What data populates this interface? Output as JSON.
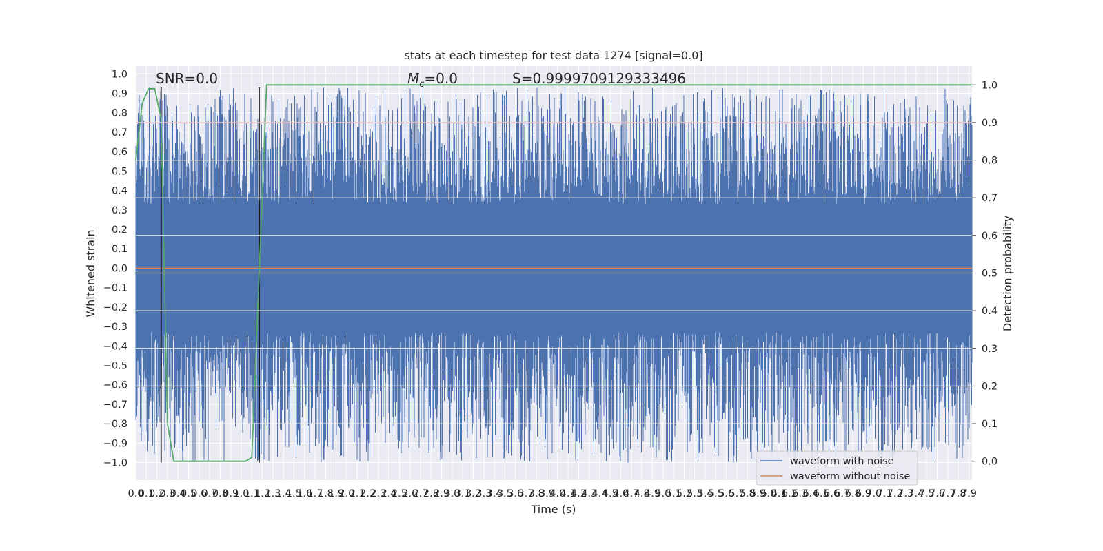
{
  "chart_data": {
    "type": "line",
    "title": "stats at each timestep for test data 1274 [signal=0.0]",
    "xlabel": "Time (s)",
    "ylabel": "Whitened strain",
    "y2label": "Detection probability",
    "xlim": [
      0.0,
      7.93
    ],
    "ylim": [
      -1.09,
      1.04
    ],
    "y2lim": [
      -0.05,
      1.05
    ],
    "grid": true,
    "legend_position": "lower-right",
    "x_ticks": [
      "0.0",
      "0.1",
      "0.2",
      "0.3",
      "0.4",
      "0.5",
      "0.6",
      "0.7",
      "0.8",
      "0.9",
      "1.0",
      "1.1",
      "1.2",
      "1.3",
      "1.4",
      "1.5",
      "1.6",
      "1.7",
      "1.8",
      "1.9",
      "2.0",
      "2.1",
      "2.2",
      "2.3",
      "2.4",
      "2.5",
      "2.6",
      "2.7",
      "2.8",
      "2.9",
      "3.0",
      "3.1",
      "3.2",
      "3.3",
      "3.4",
      "3.5",
      "3.6",
      "3.7",
      "3.8",
      "3.9",
      "4.0",
      "4.1",
      "4.2",
      "4.3",
      "4.4",
      "4.5",
      "4.6",
      "4.7",
      "4.8",
      "4.9",
      "5.0",
      "5.1",
      "5.2",
      "5.3",
      "5.4",
      "5.5",
      "5.6",
      "5.7",
      "5.8",
      "5.9",
      "6.0",
      "6.1",
      "6.2",
      "6.3",
      "6.4",
      "6.5",
      "6.6",
      "6.7",
      "6.8",
      "6.9",
      "7.0",
      "7.1",
      "7.2",
      "7.3",
      "7.4",
      "7.5",
      "7.6",
      "7.7",
      "7.8",
      "7.9"
    ],
    "y_ticks": [
      "1.0",
      "0.9",
      "0.8",
      "0.7",
      "0.6",
      "0.5",
      "0.4",
      "0.3",
      "0.2",
      "0.1",
      "0.0",
      "-0.1",
      "-0.2",
      "-0.3",
      "-0.4",
      "-0.5",
      "-0.6",
      "-0.7",
      "-0.8",
      "-0.9",
      "-1.0"
    ],
    "y2_ticks": [
      "1.0",
      "0.9",
      "0.8",
      "0.7",
      "0.6",
      "0.5",
      "0.4",
      "0.3",
      "0.2",
      "0.1",
      "0.0"
    ],
    "annotations": {
      "snr": "SNR=0.0",
      "mc_symbol": "M",
      "mc_sub": "c",
      "mc_value": "=0.0",
      "s": "S=0.9999709129333496"
    },
    "series": [
      {
        "name": "waveform with noise",
        "color": "#4c72b0",
        "style": "dense noise",
        "x_range": [
          0.0,
          7.93
        ],
        "envelope_min": -1.0,
        "envelope_max": 0.93,
        "core_band": [
          -0.33,
          0.33
        ]
      },
      {
        "name": "waveform without noise",
        "color": "#dd8452",
        "y_constant": 0.0
      }
    ],
    "detection_probability": {
      "color": "#55a868",
      "axis": "right",
      "points": [
        [
          0.0,
          0.8
        ],
        [
          0.06,
          0.95
        ],
        [
          0.12,
          0.99
        ],
        [
          0.18,
          0.99
        ],
        [
          0.24,
          0.91
        ],
        [
          0.3,
          0.1
        ],
        [
          0.36,
          0.0
        ],
        [
          1.04,
          0.0
        ],
        [
          1.1,
          0.01
        ],
        [
          1.17,
          0.5
        ],
        [
          1.24,
          1.0
        ],
        [
          7.93,
          1.0
        ]
      ]
    },
    "threshold_line": {
      "color": "#c44e52",
      "axis": "right",
      "y": 0.9
    },
    "vertical_markers": {
      "color": "#000000",
      "x": [
        0.24,
        1.17
      ],
      "y_range": [
        -1.0,
        0.93
      ]
    }
  },
  "legend": {
    "items": [
      {
        "label": "waveform with noise",
        "color": "#4c72b0"
      },
      {
        "label": "waveform without noise",
        "color": "#dd8452"
      }
    ]
  }
}
